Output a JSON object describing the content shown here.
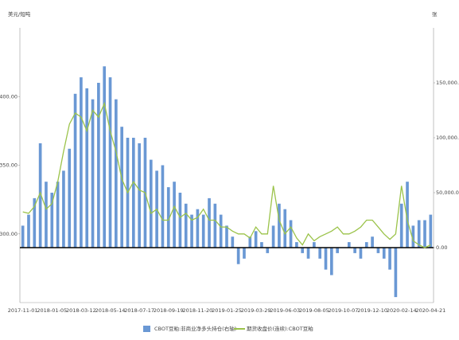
{
  "chart_data": {
    "type": "bar_line",
    "y_unit": "美元/短吨",
    "y2_unit": "张",
    "categories": [
      "2017-11-01",
      null,
      null,
      null,
      null,
      "2018-01-05",
      null,
      null,
      null,
      null,
      "2018-03-12",
      null,
      null,
      null,
      null,
      "2018-05-14",
      null,
      null,
      null,
      null,
      "2018-07-17",
      null,
      null,
      null,
      null,
      "2018-09-19",
      null,
      null,
      null,
      null,
      "2018-11-20",
      null,
      null,
      null,
      null,
      "2019-01-25",
      null,
      null,
      null,
      null,
      "2019-03-29",
      null,
      null,
      null,
      null,
      "2019-06-03",
      null,
      null,
      null,
      null,
      "2019-08-05",
      null,
      null,
      null,
      null,
      "2019-10-07",
      null,
      null,
      null,
      null,
      "2019-12-10",
      null,
      null,
      null,
      null,
      "2020-02-14",
      null,
      null,
      null,
      null,
      "2020-04-21"
    ],
    "series": [
      {
        "name": "CBOT豆粕:非商业净多头持仓(右轴)",
        "type": "bar",
        "axis": "y2",
        "color": "#6a98d4",
        "values": [
          20000,
          30000,
          45000,
          95000,
          60000,
          50000,
          60000,
          70000,
          90000,
          140000,
          155000,
          145000,
          135000,
          150000,
          165000,
          155000,
          135000,
          110000,
          100000,
          100000,
          95000,
          100000,
          80000,
          70000,
          75000,
          55000,
          60000,
          50000,
          40000,
          30000,
          35000,
          30000,
          45000,
          40000,
          30000,
          20000,
          10000,
          -15000,
          -10000,
          10000,
          15000,
          5000,
          -5000,
          20000,
          40000,
          35000,
          25000,
          5000,
          -5000,
          -10000,
          5000,
          -10000,
          -20000,
          -25000,
          -5000,
          0,
          5000,
          -5000,
          -10000,
          5000,
          10000,
          -5000,
          -10000,
          -20000,
          -45000,
          40000,
          60000,
          20000,
          25000,
          25000,
          30000
        ]
      },
      {
        "name": "期货收盘价(连续):CBOT豆粕",
        "type": "line",
        "axis": "y",
        "color": "#9bc34a",
        "values": [
          316,
          315,
          320,
          330,
          318,
          322,
          338,
          360,
          380,
          388,
          385,
          375,
          390,
          385,
          395,
          375,
          360,
          340,
          330,
          338,
          332,
          330,
          315,
          318,
          310,
          310,
          320,
          312,
          315,
          310,
          312,
          318,
          310,
          310,
          305,
          305,
          302,
          300,
          300,
          297,
          305,
          300,
          300,
          335,
          310,
          300,
          305,
          297,
          292,
          300,
          295,
          298,
          300,
          302,
          305,
          300,
          300,
          302,
          305,
          310,
          310,
          305,
          300,
          296,
          300,
          335,
          310,
          295,
          292,
          290,
          292
        ]
      }
    ],
    "ylim": [
      250,
      450
    ],
    "yticks": [
      {
        "value": 300,
        "label": "300.00"
      },
      {
        "value": 350,
        "label": "350.00"
      },
      {
        "value": 400,
        "label": "400.00"
      }
    ],
    "y2lim": [
      -50000,
      200000
    ],
    "y2ticks": [
      {
        "value": 0,
        "label": "0.00"
      },
      {
        "value": 50000,
        "label": "50,000.00"
      },
      {
        "value": 100000,
        "label": "100,000.00"
      },
      {
        "value": 150000,
        "label": "150,000.00"
      }
    ]
  }
}
